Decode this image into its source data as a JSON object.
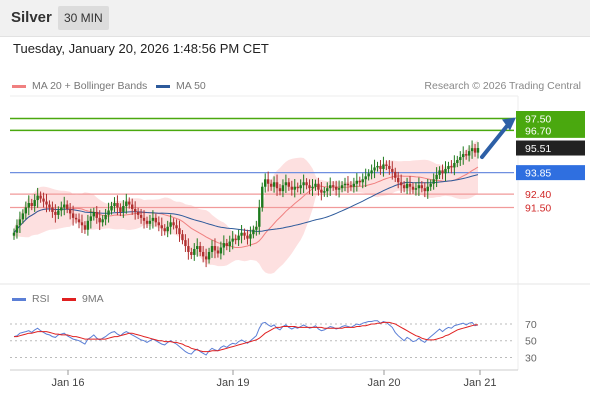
{
  "header": {
    "instrument": "Silver",
    "period": "30 MIN",
    "datetime": "Tuesday, January 20, 2026 1:48:56 PM CET"
  },
  "legend": {
    "main": [
      {
        "label": "MA 20 + Bollinger Bands",
        "color": "#f08080"
      },
      {
        "label": "MA 50",
        "color": "#2d5a9b"
      }
    ],
    "copyright": "Research © 2026 Trading Central",
    "rsi": [
      {
        "label": "RSI",
        "color": "#5b7fd6"
      },
      {
        "label": "9MA",
        "color": "#e02020"
      }
    ]
  },
  "colors": {
    "up": "#1d7a1d",
    "down": "#b03030",
    "band": "#fde0e0",
    "target": "#4aa80f",
    "resistance": "#6f8fe0",
    "support": "#f19a9a",
    "arrow": "#2d5fa6"
  },
  "chart_data": [
    {
      "type": "candlestick",
      "title": "Silver 30 MIN",
      "x_labels": [
        "Jan 16",
        "Jan 19",
        "Jan 20",
        "Jan 21"
      ],
      "levels": [
        {
          "value": 97.5,
          "label": "97.50",
          "kind": "target"
        },
        {
          "value": 96.7,
          "label": "96.70",
          "kind": "target"
        },
        {
          "value": 95.51,
          "label": "95.51",
          "kind": "last"
        },
        {
          "value": 93.85,
          "label": "93.85",
          "kind": "pivot"
        },
        {
          "value": 92.4,
          "label": "92.40",
          "kind": "support"
        },
        {
          "value": 91.5,
          "label": "91.50",
          "kind": "support"
        }
      ],
      "last_price": 95.51,
      "forecast": {
        "from": 94.9,
        "to": 97.5,
        "direction": "up"
      },
      "closes": [
        89.8,
        90.3,
        90.7,
        91.1,
        91.5,
        91.8,
        91.6,
        92.0,
        92.3,
        92.1,
        91.9,
        91.7,
        91.5,
        91.2,
        91.0,
        91.3,
        91.5,
        91.7,
        91.4,
        91.1,
        90.8,
        90.7,
        90.5,
        90.3,
        90.0,
        90.6,
        90.9,
        91.2,
        90.8,
        90.5,
        90.7,
        91.0,
        91.3,
        91.6,
        91.8,
        91.5,
        91.2,
        91.6,
        91.9,
        91.7,
        91.4,
        91.2,
        91.0,
        90.8,
        90.6,
        90.4,
        90.6,
        90.8,
        90.5,
        90.3,
        90.1,
        89.9,
        90.2,
        90.5,
        90.3,
        90.1,
        89.7,
        89.3,
        88.9,
        88.5,
        88.3,
        88.7,
        88.9,
        88.5,
        88.2,
        88.0,
        88.5,
        88.9,
        88.6,
        88.4,
        88.8,
        89.1,
        88.9,
        89.2,
        89.4,
        89.3,
        89.6,
        89.8,
        89.6,
        89.4,
        89.7,
        90.0,
        90.2,
        91.5,
        92.9,
        93.4,
        93.1,
        92.9,
        93.2,
        92.8,
        92.6,
        93.0,
        93.2,
        92.9,
        92.7,
        92.9,
        92.8,
        93.0,
        93.2,
        93.0,
        92.8,
        92.9,
        93.1,
        92.7,
        92.5,
        92.6,
        92.8,
        93.0,
        92.9,
        92.7,
        92.8,
        93.0,
        93.1,
        93.0,
        92.9,
        93.1,
        93.3,
        93.2,
        93.4,
        93.6,
        93.8,
        94.0,
        94.2,
        94.3,
        94.1,
        94.4,
        94.3,
        94.1,
        93.9,
        93.5,
        93.2,
        93.0,
        92.8,
        93.1,
        92.9,
        92.7,
        92.8,
        93.0,
        92.8,
        92.6,
        92.9,
        93.1,
        93.4,
        93.7,
        94.0,
        93.8,
        94.1,
        94.3,
        94.2,
        94.5,
        94.7,
        94.9,
        95.1,
        95.0,
        95.3,
        95.5,
        95.2,
        95.51
      ],
      "rsi_axis": {
        "ticks": [
          70,
          50,
          30
        ],
        "ylim": [
          15,
          82
        ]
      },
      "rsi_values": [
        55,
        56,
        59,
        60,
        61,
        62,
        60,
        63,
        65,
        62,
        60,
        58,
        57,
        55,
        54,
        57,
        58,
        59,
        56,
        54,
        52,
        51,
        50,
        48,
        46,
        52,
        54,
        57,
        53,
        51,
        53,
        55,
        58,
        60,
        61,
        58,
        56,
        59,
        61,
        59,
        57,
        55,
        53,
        51,
        50,
        48,
        50,
        52,
        50,
        48,
        46,
        45,
        48,
        50,
        48,
        46,
        43,
        40,
        37,
        35,
        34,
        38,
        40,
        37,
        35,
        33,
        38,
        41,
        39,
        38,
        42,
        44,
        42,
        45,
        47,
        46,
        49,
        51,
        49,
        47,
        50,
        53,
        56,
        65,
        71,
        72,
        69,
        67,
        69,
        65,
        63,
        67,
        69,
        66,
        64,
        66,
        65,
        67,
        69,
        67,
        65,
        66,
        68,
        64,
        62,
        63,
        65,
        67,
        66,
        64,
        65,
        67,
        68,
        67,
        66,
        68,
        70,
        69,
        71,
        72,
        73,
        73,
        74,
        74,
        71,
        73,
        72,
        69,
        66,
        60,
        56,
        53,
        50,
        54,
        52,
        49,
        50,
        53,
        50,
        48,
        52,
        55,
        58,
        61,
        64,
        61,
        64,
        66,
        65,
        68,
        69,
        70,
        71,
        69,
        71,
        72,
        68,
        69
      ],
      "rsi9_values": [
        55,
        55,
        56,
        57,
        58,
        59,
        59,
        60,
        61,
        61,
        61,
        61,
        60,
        59,
        58,
        58,
        57,
        57,
        57,
        56,
        55,
        55,
        54,
        53,
        52,
        52,
        52,
        52,
        52,
        52,
        52,
        52,
        53,
        54,
        55,
        55,
        56,
        57,
        58,
        59,
        59,
        58,
        57,
        56,
        55,
        54,
        53,
        52,
        51,
        50,
        50,
        49,
        49,
        49,
        48,
        48,
        47,
        46,
        44,
        43,
        41,
        40,
        39,
        38,
        37,
        37,
        37,
        38,
        38,
        38,
        39,
        40,
        41,
        42,
        43,
        44,
        45,
        46,
        47,
        48,
        49,
        50,
        51,
        53,
        56,
        59,
        61,
        63,
        65,
        66,
        66,
        67,
        67,
        67,
        67,
        67,
        66,
        66,
        66,
        66,
        66,
        66,
        66,
        66,
        66,
        65,
        65,
        65,
        65,
        65,
        65,
        65,
        66,
        66,
        66,
        66,
        67,
        67,
        68,
        68,
        69,
        70,
        70,
        71,
        71,
        72,
        72,
        72,
        71,
        70,
        68,
        66,
        64,
        62,
        60,
        58,
        56,
        55,
        53,
        52,
        51,
        51,
        51,
        52,
        53,
        54,
        56,
        57,
        59,
        61,
        63,
        64,
        65,
        66,
        67,
        68,
        69,
        69
      ]
    }
  ]
}
